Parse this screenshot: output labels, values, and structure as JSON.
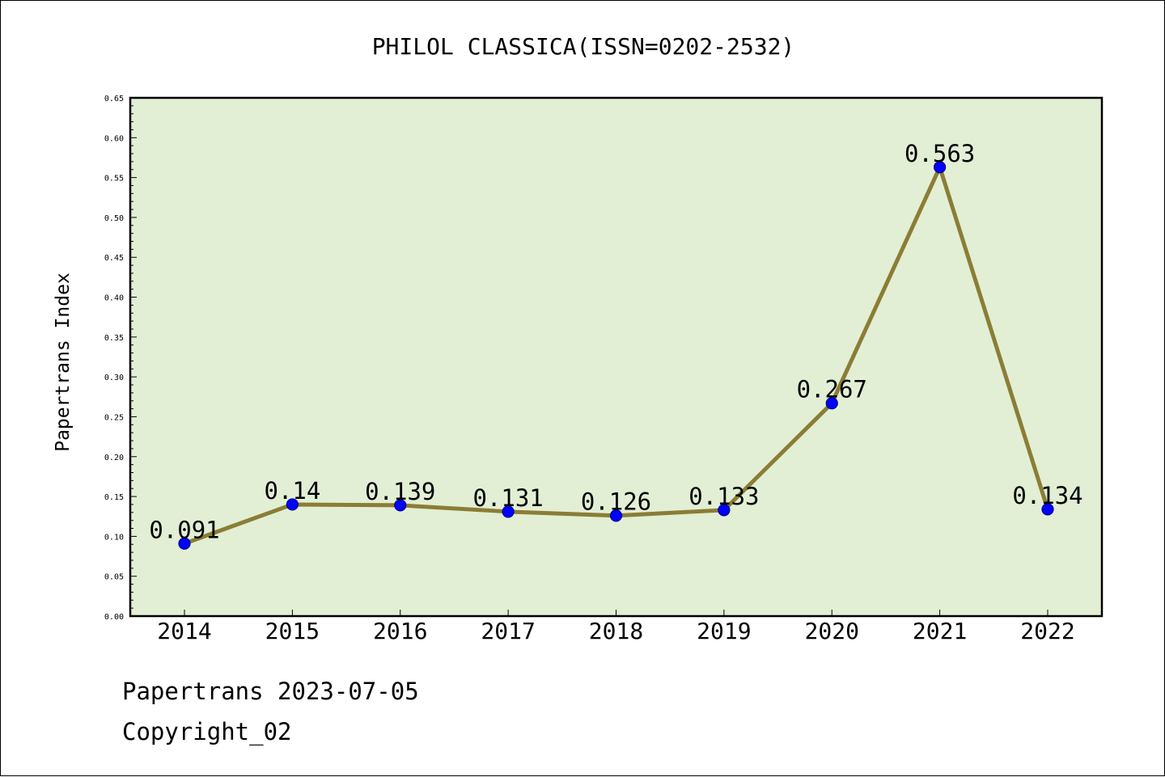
{
  "chart_data": {
    "type": "line",
    "title": "PHILOL CLASSICA(ISSN=0202-2532)",
    "xlabel": "",
    "ylabel": "Papertrans Index",
    "categories": [
      "2014",
      "2015",
      "2016",
      "2017",
      "2018",
      "2019",
      "2020",
      "2021",
      "2022"
    ],
    "series": [
      {
        "values": [
          0.091,
          0.14,
          0.139,
          0.131,
          0.126,
          0.133,
          0.267,
          0.563,
          0.134
        ],
        "labels": [
          "0.091",
          "0.14",
          "0.139",
          "0.131",
          "0.126",
          "0.133",
          "0.267",
          "0.563",
          "0.134"
        ]
      }
    ],
    "ylim": [
      0,
      0.65
    ],
    "yticks": [
      "0.00",
      "0.05",
      "0.10",
      "0.15",
      "0.20",
      "0.25",
      "0.30",
      "0.35",
      "0.40",
      "0.45",
      "0.50",
      "0.55",
      "0.60",
      "0.65"
    ],
    "grid": false,
    "legend": "none"
  },
  "footer": {
    "line1": "Papertrans 2023-07-05",
    "line2": "Copyright_02"
  },
  "colors": {
    "plot_background": "#e2efd5",
    "line": "#8b7d35",
    "marker_fill": "#0000ff",
    "marker_edge": "#00008b"
  }
}
